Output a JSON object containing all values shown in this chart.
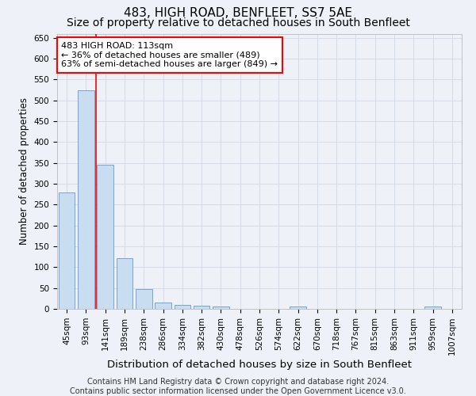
{
  "title": "483, HIGH ROAD, BENFLEET, SS7 5AE",
  "subtitle": "Size of property relative to detached houses in South Benfleet",
  "xlabel": "Distribution of detached houses by size in South Benfleet",
  "ylabel": "Number of detached properties",
  "categories": [
    "45sqm",
    "93sqm",
    "141sqm",
    "189sqm",
    "238sqm",
    "286sqm",
    "334sqm",
    "382sqm",
    "430sqm",
    "478sqm",
    "526sqm",
    "574sqm",
    "622sqm",
    "670sqm",
    "718sqm",
    "767sqm",
    "815sqm",
    "863sqm",
    "911sqm",
    "959sqm",
    "1007sqm"
  ],
  "values": [
    280,
    525,
    345,
    122,
    48,
    15,
    10,
    8,
    5,
    0,
    0,
    0,
    5,
    0,
    0,
    0,
    0,
    0,
    0,
    5,
    0
  ],
  "bar_color": "#c9ddf0",
  "bar_edge_color": "#6699cc",
  "grid_color": "#d0d8e8",
  "annotation_box_text_line1": "483 HIGH ROAD: 113sqm",
  "annotation_box_text_line2": "← 36% of detached houses are smaller (489)",
  "annotation_box_text_line3": "63% of semi-detached houses are larger (849) →",
  "annotation_box_color": "white",
  "annotation_box_edge_color": "red",
  "vline_color": "red",
  "vline_x_index": 1,
  "ylim": [
    0,
    660
  ],
  "yticks": [
    0,
    50,
    100,
    150,
    200,
    250,
    300,
    350,
    400,
    450,
    500,
    550,
    600,
    650
  ],
  "footer": "Contains HM Land Registry data © Crown copyright and database right 2024.\nContains public sector information licensed under the Open Government Licence v3.0.",
  "title_fontsize": 11,
  "subtitle_fontsize": 10,
  "xlabel_fontsize": 9.5,
  "ylabel_fontsize": 8.5,
  "tick_fontsize": 7.5,
  "annot_fontsize": 8,
  "footer_fontsize": 7,
  "background_color": "#eef2f8"
}
